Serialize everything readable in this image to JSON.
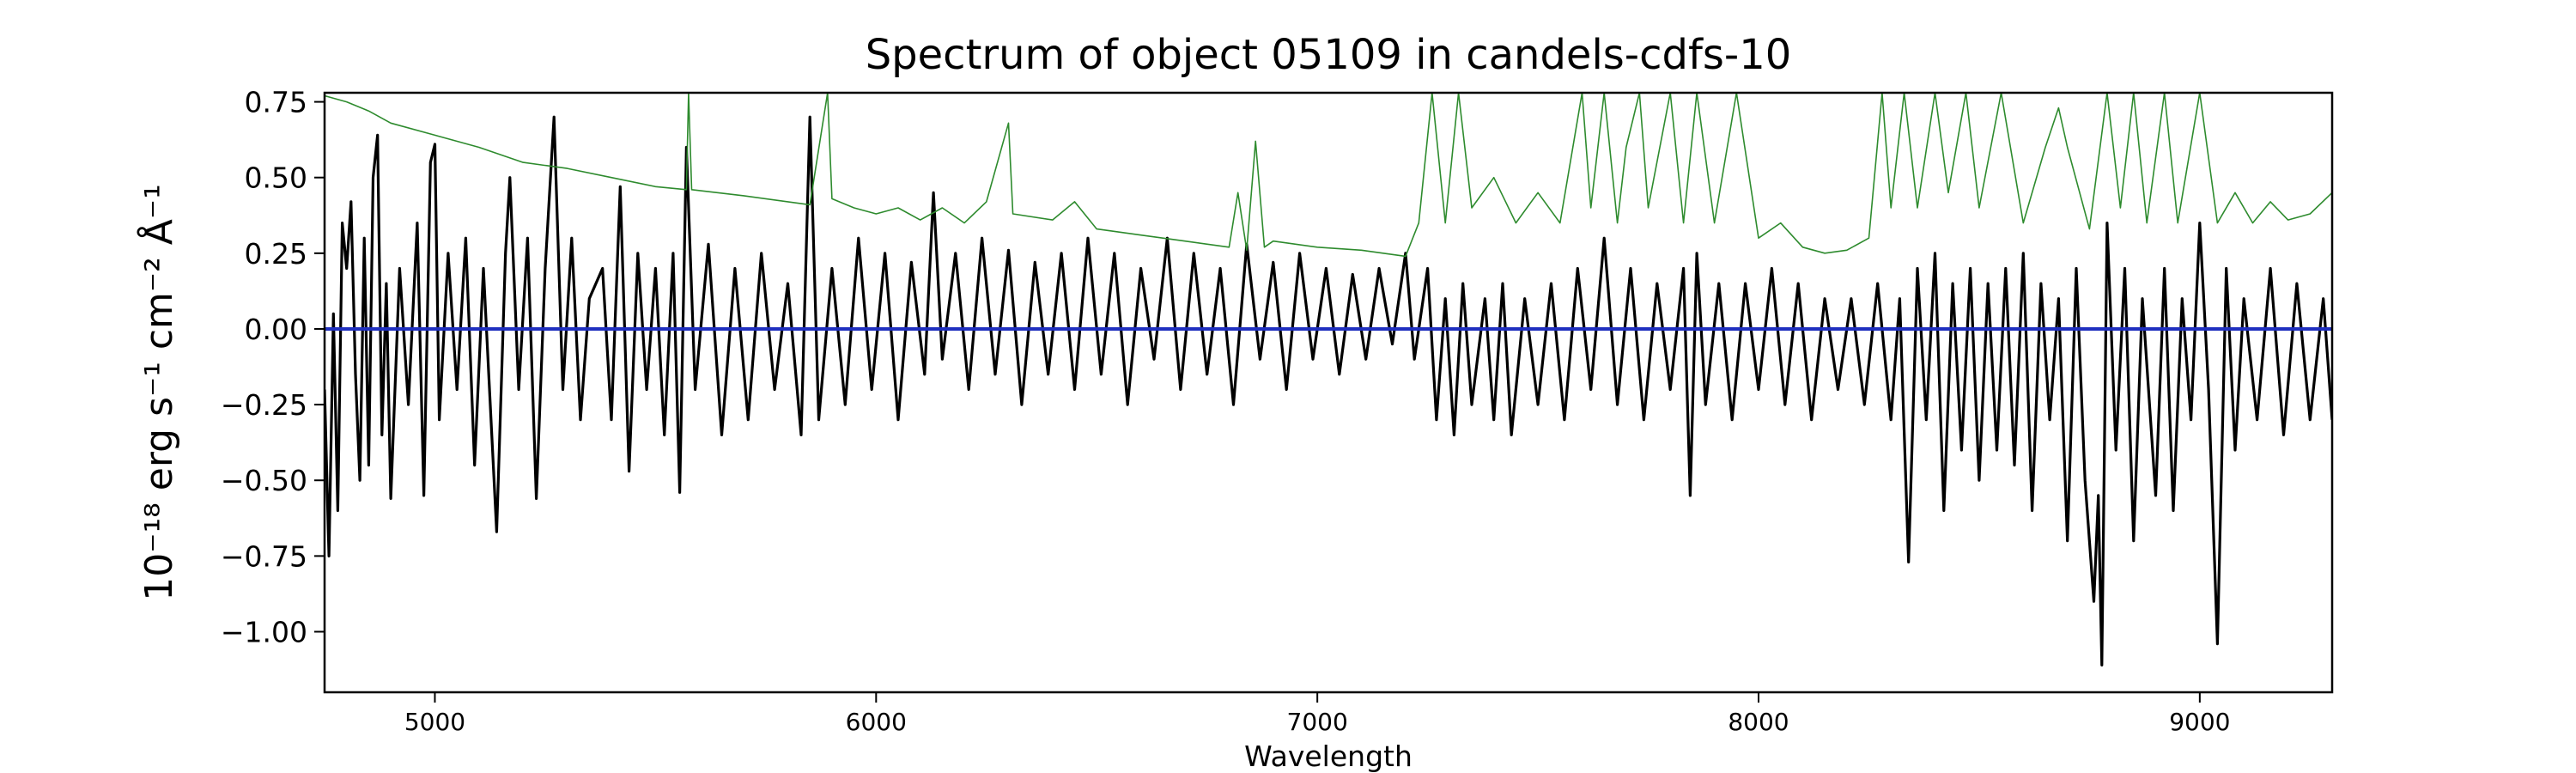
{
  "chart_data": {
    "type": "line",
    "title": "Spectrum of object 05109 in candels-cdfs-10",
    "xlabel": "Wavelength",
    "ylabel": "10⁻¹⁸ erg s⁻¹ cm⁻² Å⁻¹",
    "xlim": [
      4750,
      9300
    ],
    "ylim": [
      -1.2,
      0.78
    ],
    "xticks": [
      5000,
      6000,
      7000,
      8000,
      9000
    ],
    "yticks": [
      0.75,
      0.5,
      0.25,
      0.0,
      -0.25,
      -0.5,
      -0.75,
      -1.0
    ],
    "ytick_labels": [
      "0.75",
      "0.50",
      "0.25",
      "0.00",
      "−0.25",
      "−0.50",
      "−0.75",
      "−1.00"
    ],
    "grid": false,
    "legend": "none",
    "series": [
      {
        "role": "flux",
        "color": "#000000",
        "points": [
          [
            4750,
            -0.2
          ],
          [
            4760,
            -0.75
          ],
          [
            4770,
            0.05
          ],
          [
            4780,
            -0.6
          ],
          [
            4790,
            0.35
          ],
          [
            4800,
            0.2
          ],
          [
            4810,
            0.42
          ],
          [
            4820,
            -0.15
          ],
          [
            4830,
            -0.5
          ],
          [
            4840,
            0.3
          ],
          [
            4850,
            -0.45
          ],
          [
            4860,
            0.5
          ],
          [
            4870,
            0.64
          ],
          [
            4880,
            -0.35
          ],
          [
            4890,
            0.15
          ],
          [
            4900,
            -0.56
          ],
          [
            4920,
            0.2
          ],
          [
            4940,
            -0.25
          ],
          [
            4960,
            0.35
          ],
          [
            4975,
            -0.55
          ],
          [
            4990,
            0.55
          ],
          [
            5000,
            0.61
          ],
          [
            5010,
            -0.3
          ],
          [
            5030,
            0.25
          ],
          [
            5050,
            -0.2
          ],
          [
            5070,
            0.3
          ],
          [
            5090,
            -0.45
          ],
          [
            5110,
            0.2
          ],
          [
            5140,
            -0.67
          ],
          [
            5160,
            0.25
          ],
          [
            5170,
            0.5
          ],
          [
            5190,
            -0.2
          ],
          [
            5210,
            0.3
          ],
          [
            5230,
            -0.56
          ],
          [
            5250,
            0.2
          ],
          [
            5270,
            0.7
          ],
          [
            5290,
            -0.2
          ],
          [
            5310,
            0.3
          ],
          [
            5330,
            -0.3
          ],
          [
            5350,
            0.1
          ],
          [
            5380,
            0.2
          ],
          [
            5400,
            -0.3
          ],
          [
            5420,
            0.47
          ],
          [
            5440,
            -0.47
          ],
          [
            5460,
            0.25
          ],
          [
            5480,
            -0.2
          ],
          [
            5500,
            0.2
          ],
          [
            5520,
            -0.35
          ],
          [
            5540,
            0.25
          ],
          [
            5555,
            -0.54
          ],
          [
            5570,
            0.6
          ],
          [
            5590,
            -0.2
          ],
          [
            5620,
            0.28
          ],
          [
            5650,
            -0.35
          ],
          [
            5680,
            0.2
          ],
          [
            5710,
            -0.3
          ],
          [
            5740,
            0.25
          ],
          [
            5770,
            -0.2
          ],
          [
            5800,
            0.15
          ],
          [
            5830,
            -0.35
          ],
          [
            5850,
            0.7
          ],
          [
            5870,
            -0.3
          ],
          [
            5900,
            0.2
          ],
          [
            5930,
            -0.25
          ],
          [
            5960,
            0.3
          ],
          [
            5990,
            -0.2
          ],
          [
            6020,
            0.25
          ],
          [
            6050,
            -0.3
          ],
          [
            6080,
            0.22
          ],
          [
            6110,
            -0.15
          ],
          [
            6130,
            0.45
          ],
          [
            6150,
            -0.1
          ],
          [
            6180,
            0.25
          ],
          [
            6210,
            -0.2
          ],
          [
            6240,
            0.3
          ],
          [
            6270,
            -0.15
          ],
          [
            6300,
            0.26
          ],
          [
            6330,
            -0.25
          ],
          [
            6360,
            0.22
          ],
          [
            6390,
            -0.15
          ],
          [
            6420,
            0.25
          ],
          [
            6450,
            -0.2
          ],
          [
            6480,
            0.3
          ],
          [
            6510,
            -0.15
          ],
          [
            6540,
            0.25
          ],
          [
            6570,
            -0.25
          ],
          [
            6600,
            0.2
          ],
          [
            6630,
            -0.1
          ],
          [
            6660,
            0.3
          ],
          [
            6690,
            -0.2
          ],
          [
            6720,
            0.25
          ],
          [
            6750,
            -0.15
          ],
          [
            6780,
            0.2
          ],
          [
            6810,
            -0.25
          ],
          [
            6840,
            0.28
          ],
          [
            6870,
            -0.1
          ],
          [
            6900,
            0.22
          ],
          [
            6930,
            -0.2
          ],
          [
            6960,
            0.25
          ],
          [
            6990,
            -0.1
          ],
          [
            7020,
            0.2
          ],
          [
            7050,
            -0.15
          ],
          [
            7080,
            0.18
          ],
          [
            7110,
            -0.1
          ],
          [
            7140,
            0.2
          ],
          [
            7170,
            -0.05
          ],
          [
            7200,
            0.25
          ],
          [
            7220,
            -0.1
          ],
          [
            7250,
            0.2
          ],
          [
            7270,
            -0.3
          ],
          [
            7290,
            0.1
          ],
          [
            7310,
            -0.35
          ],
          [
            7330,
            0.15
          ],
          [
            7350,
            -0.25
          ],
          [
            7380,
            0.1
          ],
          [
            7400,
            -0.3
          ],
          [
            7420,
            0.15
          ],
          [
            7440,
            -0.35
          ],
          [
            7470,
            0.1
          ],
          [
            7500,
            -0.25
          ],
          [
            7530,
            0.15
          ],
          [
            7560,
            -0.3
          ],
          [
            7590,
            0.2
          ],
          [
            7620,
            -0.2
          ],
          [
            7650,
            0.3
          ],
          [
            7680,
            -0.25
          ],
          [
            7710,
            0.2
          ],
          [
            7740,
            -0.3
          ],
          [
            7770,
            0.15
          ],
          [
            7800,
            -0.2
          ],
          [
            7830,
            0.2
          ],
          [
            7845,
            -0.55
          ],
          [
            7860,
            0.25
          ],
          [
            7880,
            -0.25
          ],
          [
            7910,
            0.15
          ],
          [
            7940,
            -0.3
          ],
          [
            7970,
            0.15
          ],
          [
            8000,
            -0.2
          ],
          [
            8030,
            0.2
          ],
          [
            8060,
            -0.25
          ],
          [
            8090,
            0.15
          ],
          [
            8120,
            -0.3
          ],
          [
            8150,
            0.1
          ],
          [
            8180,
            -0.2
          ],
          [
            8210,
            0.1
          ],
          [
            8240,
            -0.25
          ],
          [
            8270,
            0.15
          ],
          [
            8300,
            -0.3
          ],
          [
            8320,
            0.1
          ],
          [
            8340,
            -0.77
          ],
          [
            8360,
            0.2
          ],
          [
            8380,
            -0.3
          ],
          [
            8400,
            0.25
          ],
          [
            8420,
            -0.6
          ],
          [
            8440,
            0.15
          ],
          [
            8460,
            -0.4
          ],
          [
            8480,
            0.2
          ],
          [
            8500,
            -0.5
          ],
          [
            8520,
            0.15
          ],
          [
            8540,
            -0.4
          ],
          [
            8560,
            0.2
          ],
          [
            8580,
            -0.45
          ],
          [
            8600,
            0.25
          ],
          [
            8620,
            -0.6
          ],
          [
            8640,
            0.15
          ],
          [
            8660,
            -0.3
          ],
          [
            8680,
            0.1
          ],
          [
            8700,
            -0.7
          ],
          [
            8720,
            0.2
          ],
          [
            8740,
            -0.5
          ],
          [
            8760,
            -0.9
          ],
          [
            8770,
            -0.55
          ],
          [
            8778,
            -1.11
          ],
          [
            8790,
            0.35
          ],
          [
            8810,
            -0.4
          ],
          [
            8830,
            0.2
          ],
          [
            8850,
            -0.7
          ],
          [
            8870,
            0.1
          ],
          [
            8900,
            -0.55
          ],
          [
            8920,
            0.2
          ],
          [
            8940,
            -0.6
          ],
          [
            8960,
            0.1
          ],
          [
            8980,
            -0.3
          ],
          [
            9000,
            0.35
          ],
          [
            9020,
            -0.2
          ],
          [
            9040,
            -1.04
          ],
          [
            9060,
            0.2
          ],
          [
            9080,
            -0.4
          ],
          [
            9100,
            0.1
          ],
          [
            9130,
            -0.3
          ],
          [
            9160,
            0.2
          ],
          [
            9190,
            -0.35
          ],
          [
            9220,
            0.15
          ],
          [
            9250,
            -0.3
          ],
          [
            9280,
            0.1
          ],
          [
            9300,
            -0.3
          ]
        ]
      },
      {
        "role": "error",
        "color": "#2e8b2e",
        "points": [
          [
            4750,
            0.77
          ],
          [
            4800,
            0.75
          ],
          [
            4850,
            0.72
          ],
          [
            4900,
            0.68
          ],
          [
            5000,
            0.64
          ],
          [
            5100,
            0.6
          ],
          [
            5200,
            0.55
          ],
          [
            5300,
            0.53
          ],
          [
            5400,
            0.5
          ],
          [
            5500,
            0.47
          ],
          [
            5570,
            0.46
          ],
          [
            5575,
            0.78
          ],
          [
            5582,
            0.46
          ],
          [
            5700,
            0.44
          ],
          [
            5850,
            0.41
          ],
          [
            5890,
            0.78
          ],
          [
            5900,
            0.43
          ],
          [
            5950,
            0.4
          ],
          [
            6000,
            0.38
          ],
          [
            6050,
            0.4
          ],
          [
            6100,
            0.36
          ],
          [
            6150,
            0.4
          ],
          [
            6200,
            0.35
          ],
          [
            6250,
            0.42
          ],
          [
            6300,
            0.68
          ],
          [
            6310,
            0.38
          ],
          [
            6400,
            0.36
          ],
          [
            6450,
            0.42
          ],
          [
            6500,
            0.33
          ],
          [
            6600,
            0.31
          ],
          [
            6700,
            0.29
          ],
          [
            6800,
            0.27
          ],
          [
            6820,
            0.45
          ],
          [
            6840,
            0.26
          ],
          [
            6860,
            0.62
          ],
          [
            6880,
            0.27
          ],
          [
            6900,
            0.29
          ],
          [
            7000,
            0.27
          ],
          [
            7100,
            0.26
          ],
          [
            7200,
            0.24
          ],
          [
            7230,
            0.35
          ],
          [
            7260,
            0.78
          ],
          [
            7290,
            0.35
          ],
          [
            7320,
            0.78
          ],
          [
            7350,
            0.4
          ],
          [
            7400,
            0.5
          ],
          [
            7450,
            0.35
          ],
          [
            7500,
            0.45
          ],
          [
            7550,
            0.35
          ],
          [
            7600,
            0.78
          ],
          [
            7620,
            0.4
          ],
          [
            7650,
            0.78
          ],
          [
            7680,
            0.35
          ],
          [
            7700,
            0.6
          ],
          [
            7730,
            0.78
          ],
          [
            7750,
            0.4
          ],
          [
            7800,
            0.78
          ],
          [
            7830,
            0.35
          ],
          [
            7860,
            0.78
          ],
          [
            7900,
            0.35
          ],
          [
            7950,
            0.78
          ],
          [
            8000,
            0.3
          ],
          [
            8050,
            0.35
          ],
          [
            8100,
            0.27
          ],
          [
            8150,
            0.25
          ],
          [
            8200,
            0.26
          ],
          [
            8250,
            0.3
          ],
          [
            8280,
            0.78
          ],
          [
            8300,
            0.4
          ],
          [
            8330,
            0.78
          ],
          [
            8360,
            0.4
          ],
          [
            8400,
            0.78
          ],
          [
            8430,
            0.45
          ],
          [
            8470,
            0.78
          ],
          [
            8500,
            0.4
          ],
          [
            8550,
            0.78
          ],
          [
            8600,
            0.35
          ],
          [
            8650,
            0.6
          ],
          [
            8680,
            0.73
          ],
          [
            8700,
            0.6
          ],
          [
            8750,
            0.33
          ],
          [
            8790,
            0.78
          ],
          [
            8820,
            0.4
          ],
          [
            8850,
            0.78
          ],
          [
            8880,
            0.35
          ],
          [
            8920,
            0.78
          ],
          [
            8950,
            0.35
          ],
          [
            9000,
            0.78
          ],
          [
            9040,
            0.35
          ],
          [
            9080,
            0.45
          ],
          [
            9120,
            0.35
          ],
          [
            9160,
            0.42
          ],
          [
            9200,
            0.36
          ],
          [
            9250,
            0.38
          ],
          [
            9300,
            0.45
          ]
        ]
      },
      {
        "role": "model",
        "color": "#1f2fbf",
        "points": [
          [
            4750,
            0.0
          ],
          [
            9300,
            0.0
          ]
        ]
      }
    ]
  }
}
